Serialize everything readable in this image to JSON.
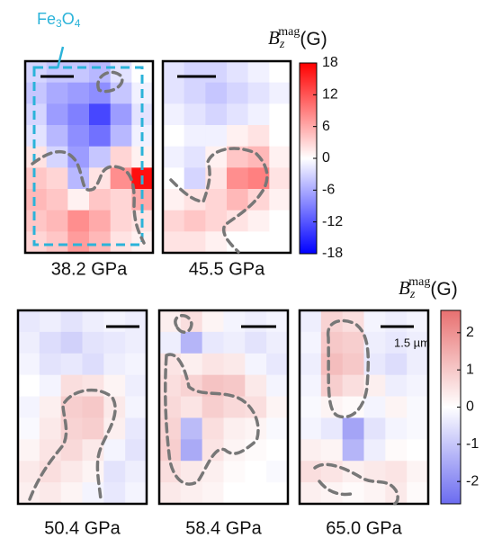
{
  "chart_data": [
    {
      "type": "heatmap",
      "colorbar": {
        "label": {
          "symbol": "B",
          "subscript": "z",
          "superscript": "mag",
          "unit": "(G)"
        },
        "lim": [
          -18,
          18
        ],
        "ticks": [
          18,
          12,
          6,
          0,
          -6,
          -12,
          -18
        ],
        "low_color": "#0000ff",
        "high_color": "#ff0000"
      },
      "annotation": [
        "Fe",
        "3",
        "O",
        "4"
      ],
      "panels": [
        {
          "title": "38.2 GPa",
          "values": [
            [
              -3,
              -4,
              -4,
              -5,
              -2,
              0
            ],
            [
              -4,
              -6,
              -7,
              -8,
              -4,
              -1
            ],
            [
              -3,
              -7,
              -9,
              -13,
              -7,
              -2
            ],
            [
              -2,
              -5,
              -8,
              -10,
              -5,
              -1
            ],
            [
              2,
              -3,
              -7,
              -4,
              3,
              1
            ],
            [
              4,
              3,
              -5,
              2,
              8,
              17
            ],
            [
              5,
              4,
              1,
              4,
              3,
              6
            ],
            [
              4,
              5,
              8,
              6,
              3,
              2
            ],
            [
              3,
              4,
              7,
              5,
              2,
              1
            ]
          ]
        },
        {
          "title": "45.5 GPa",
          "values": [
            [
              -2,
              -3,
              -3,
              -2,
              -1,
              0
            ],
            [
              -2,
              -3,
              -4,
              -3,
              -2,
              -1
            ],
            [
              -1,
              -2,
              -3,
              -2,
              -1,
              0
            ],
            [
              0,
              -1,
              -1,
              1,
              2,
              0
            ],
            [
              -1,
              -2,
              1,
              4,
              5,
              1
            ],
            [
              0,
              -3,
              2,
              8,
              9,
              2
            ],
            [
              1,
              2,
              3,
              5,
              3,
              1
            ],
            [
              3,
              4,
              3,
              2,
              1,
              0
            ],
            [
              2,
              2,
              1,
              0,
              0,
              0
            ]
          ]
        }
      ]
    },
    {
      "type": "heatmap",
      "colorbar": {
        "label": {
          "symbol": "B",
          "subscript": "z",
          "superscript": "mag",
          "unit": "(G)"
        },
        "lim": [
          -2.6,
          2.6
        ],
        "ticks": [
          2,
          1,
          0,
          -1,
          -2
        ],
        "low_color": "#6b6bf0",
        "high_color": "#e87070"
      },
      "annotation": "1.5 µm",
      "panels": [
        {
          "title": "50.4 GPa",
          "values": [
            [
              -0.4,
              -0.3,
              -0.5,
              -0.3,
              -0.2,
              -0.3
            ],
            [
              -0.3,
              -0.6,
              -0.8,
              -0.5,
              -0.4,
              -0.3
            ],
            [
              -0.2,
              -0.5,
              -0.4,
              -0.6,
              -0.3,
              -0.2
            ],
            [
              0,
              -0.2,
              0.6,
              0.5,
              0.2,
              -0.3
            ],
            [
              -0.2,
              0.3,
              0.9,
              1.0,
              0.4,
              -0.2
            ],
            [
              -0.1,
              0.4,
              0.8,
              0.9,
              0.3,
              -0.4
            ],
            [
              0.2,
              0.5,
              0.7,
              0.4,
              -0.2,
              -0.5
            ],
            [
              0.4,
              0.6,
              0.4,
              0.2,
              -0.5,
              -0.3
            ],
            [
              0.3,
              0.4,
              0.2,
              -0.2,
              -0.4,
              -0.2
            ]
          ]
        },
        {
          "title": "58.4 GPa",
          "values": [
            [
              0.3,
              0.6,
              0.2,
              -0.2,
              -0.3,
              -0.2
            ],
            [
              -0.3,
              -1.3,
              -0.4,
              -0.3,
              -0.5,
              -0.3
            ],
            [
              0.5,
              0.3,
              0.5,
              0.4,
              -0.2,
              -0.4
            ],
            [
              0.6,
              0.8,
              1.1,
              1.0,
              0.4,
              -0.2
            ],
            [
              0.7,
              0.5,
              0.9,
              0.7,
              0.6,
              0.2
            ],
            [
              0.8,
              -1.2,
              0.6,
              0.3,
              0.2,
              -0.1
            ],
            [
              0.9,
              -1.5,
              0.5,
              0.2,
              0.1,
              0
            ],
            [
              0.6,
              0.4,
              0.3,
              0.1,
              0,
              -0.1
            ],
            [
              0.4,
              0.3,
              0.2,
              0,
              0,
              0
            ]
          ]
        },
        {
          "title": "65.0 GPa",
          "values": [
            [
              -0.3,
              0.8,
              0.6,
              -0.2,
              -0.3,
              -0.2
            ],
            [
              -0.2,
              1.0,
              0.9,
              -0.3,
              -0.4,
              -0.3
            ],
            [
              -0.3,
              1.2,
              1.0,
              -0.4,
              -0.6,
              -0.3
            ],
            [
              -0.2,
              0.9,
              0.6,
              0.3,
              -0.3,
              -0.2
            ],
            [
              -0.1,
              0.2,
              0.1,
              -0.2,
              0.2,
              -0.1
            ],
            [
              -0.2,
              -0.4,
              -1.6,
              -0.5,
              -0.2,
              -0.1
            ],
            [
              0.3,
              0.2,
              -1.3,
              -0.3,
              0.1,
              0
            ],
            [
              0.6,
              0.5,
              0.3,
              0.4,
              0.5,
              0.2
            ],
            [
              0.3,
              0.2,
              0.1,
              0.2,
              0.4,
              0.1
            ]
          ]
        }
      ]
    }
  ]
}
